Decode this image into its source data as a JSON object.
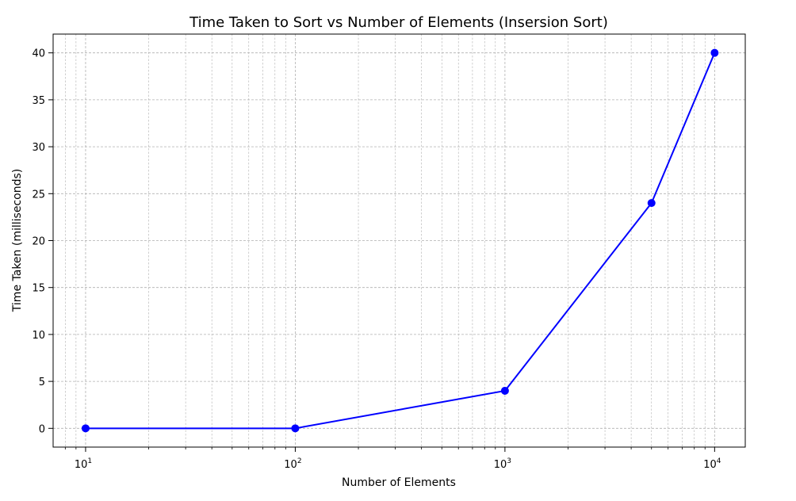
{
  "chart_data": {
    "type": "line",
    "title": "Time Taken to Sort vs Number of Elements (Insersion Sort)",
    "xlabel": "Number of Elements",
    "ylabel": "Time Taken (milliseconds)",
    "x_scale": "log",
    "x": [
      10,
      100,
      1000,
      5000,
      10000
    ],
    "series": [
      {
        "values": [
          0,
          0,
          4,
          24,
          40
        ],
        "color": "#0000ff",
        "marker": "circle"
      }
    ],
    "xlim": [
      7,
      14000
    ],
    "ylim": [
      -2,
      42
    ],
    "x_ticks": [
      {
        "value": 10,
        "base": "10",
        "exp": "1"
      },
      {
        "value": 100,
        "base": "10",
        "exp": "2"
      },
      {
        "value": 1000,
        "base": "10",
        "exp": "3"
      },
      {
        "value": 10000,
        "base": "10",
        "exp": "4"
      }
    ],
    "y_ticks": [
      0,
      5,
      10,
      15,
      20,
      25,
      30,
      35,
      40
    ],
    "grid": true,
    "grid_color": "#b0b0b0",
    "axis_color": "#000000",
    "legend": false
  }
}
